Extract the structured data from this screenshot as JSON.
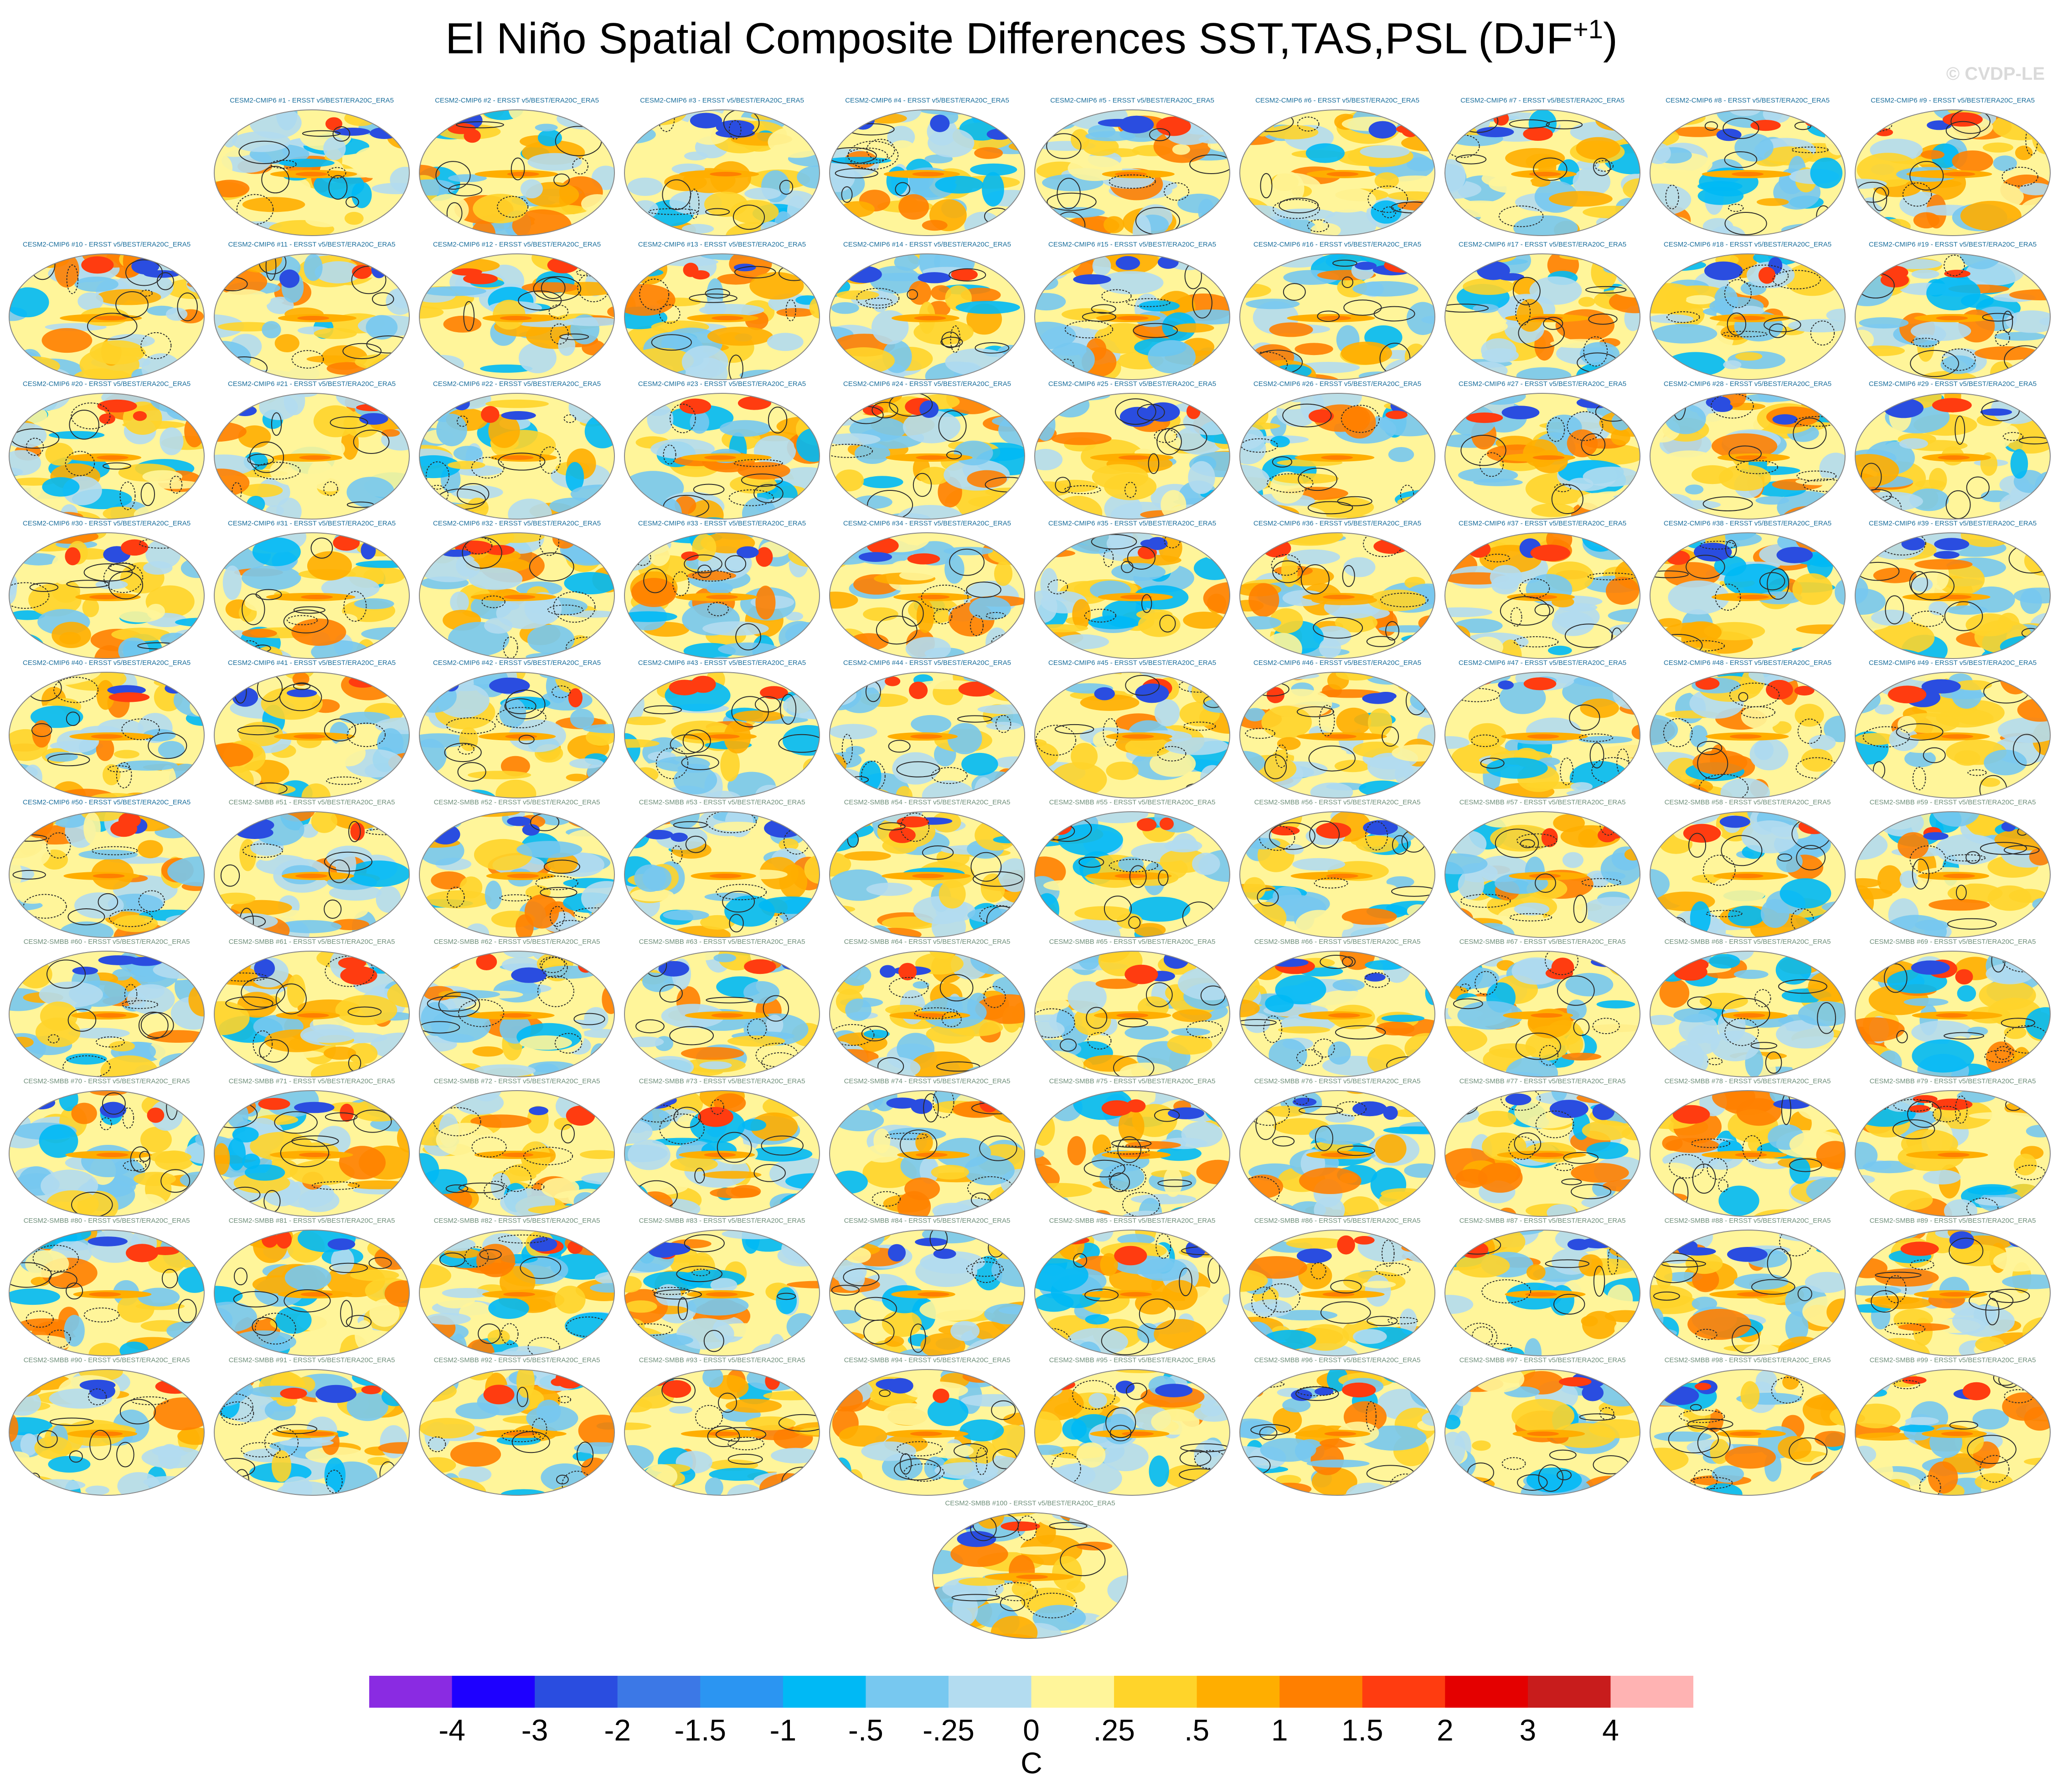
{
  "title": "El Niño Spatial Composite Differences SST,TAS,PSL (DJF",
  "title_superscript": "+1",
  "title_close": ")",
  "watermark": "© CVDP-LE",
  "units": "C",
  "panel_suffix": " - ERSST v5/BEST/ERA20C_ERA5",
  "colors": {
    "cmip6_label": "#1a6e9c",
    "smbb_label": "#6f8f7a",
    "contour": "#2b2b2b",
    "map_outline": "#888888"
  },
  "chart_data": {
    "type": "heatmap",
    "description_source": "101 ensemble-member difference maps with shared color scale",
    "members": [
      {
        "model": "CESM2-CMIP6",
        "first": 1,
        "last": 50
      },
      {
        "model": "CESM2-SMBB",
        "first": 51,
        "last": 100
      }
    ],
    "colorbar": {
      "colors": [
        "#8a2be2",
        "#1e00ff",
        "#2a4de0",
        "#3c78e6",
        "#2b95f2",
        "#00b9f5",
        "#77c8f0",
        "#b3dcf0",
        "#fff59a",
        "#ffd42a",
        "#ffae00",
        "#ff7f00",
        "#ff3c10",
        "#e40000",
        "#c81c1c",
        "#ffb3b3"
      ],
      "tick_labels": [
        "-4",
        "-3",
        "-2",
        "-1.5",
        "-1",
        "-.5",
        "-.25",
        "0",
        ".25",
        ".5",
        "1",
        "1.5",
        "2",
        "3",
        "4"
      ]
    }
  }
}
